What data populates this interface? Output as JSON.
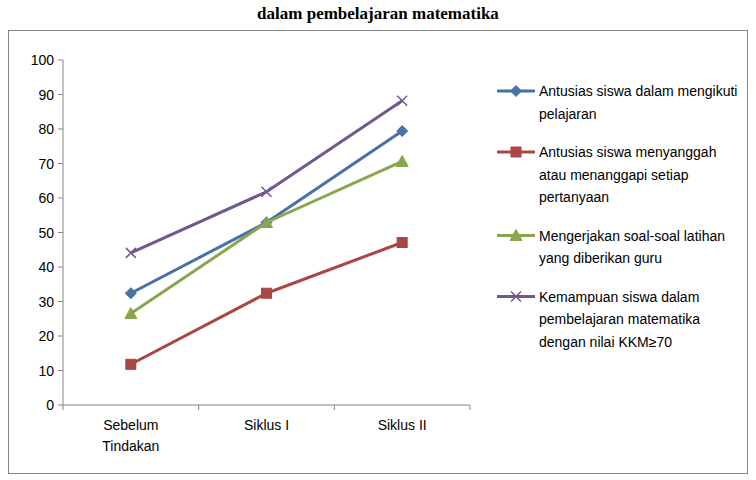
{
  "chart_data": {
    "type": "line",
    "title": "dalam pembelajaran matematika",
    "categories": [
      "Sebelum Tindakan",
      "Siklus I",
      "Siklus II"
    ],
    "series": [
      {
        "name": "Antusias siswa dalam mengikuti pelajaran",
        "color": "#4572a7",
        "marker": "diamond",
        "values": [
          32.4,
          52.9,
          79.4
        ]
      },
      {
        "name": "Antusias siswa menyanggah atau menanggapi setiap pertanyaan",
        "color": "#aa4643",
        "marker": "square",
        "values": [
          11.8,
          32.4,
          47.1
        ]
      },
      {
        "name": "Mengerjakan soal-soal latihan yang diberikan guru",
        "color": "#89a54e",
        "marker": "triangle",
        "values": [
          26.5,
          52.9,
          70.6
        ]
      },
      {
        "name": "Kemampuan siswa dalam pembelajaran matematika dengan nilai KKM≥70",
        "color": "#71588f",
        "marker": "x",
        "values": [
          44.1,
          61.8,
          88.2
        ]
      }
    ],
    "ylim": [
      0,
      100
    ],
    "yticks": [
      0,
      10,
      20,
      30,
      40,
      50,
      60,
      70,
      80,
      90,
      100
    ],
    "grid": false,
    "legend": "right"
  }
}
